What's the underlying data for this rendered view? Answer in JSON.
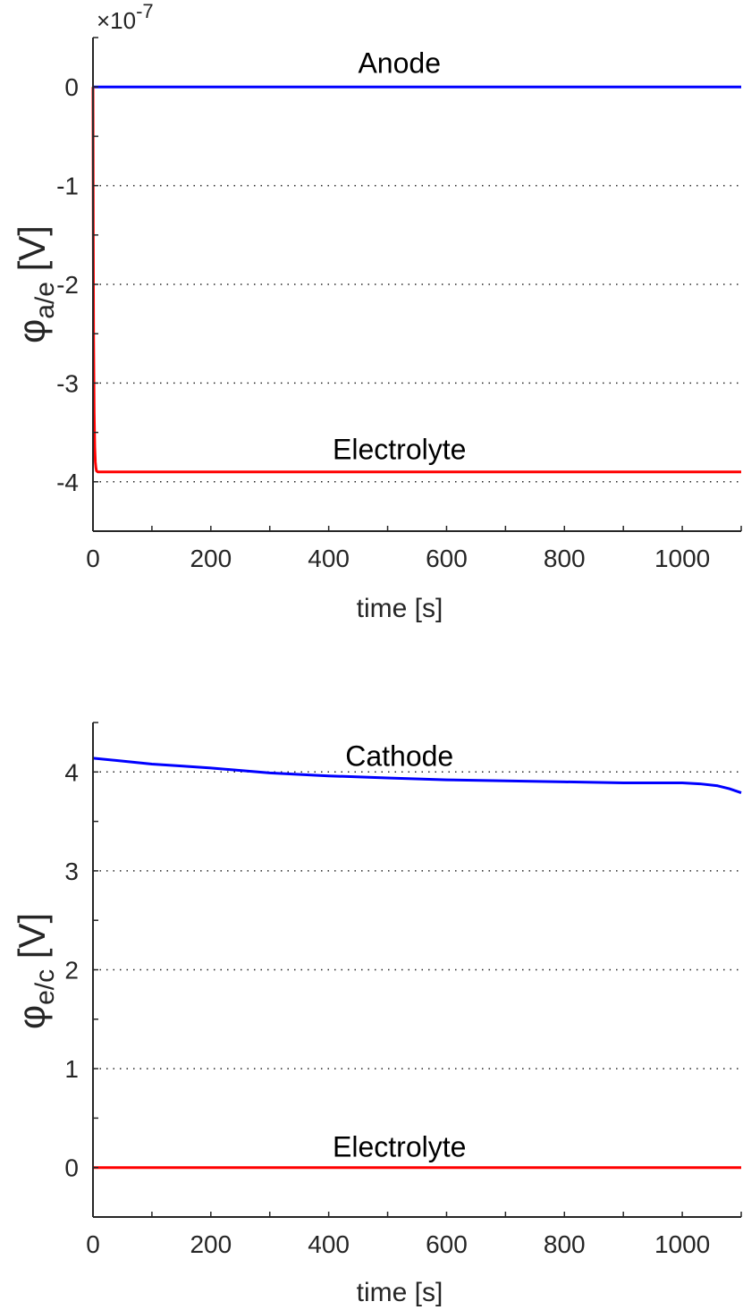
{
  "chart_data": [
    {
      "type": "line",
      "xlabel": "time [s]",
      "ylabel_main": "φ",
      "ylabel_sub": "a/e",
      "ylabel_unit": " [V]",
      "y_multiplier": "×10",
      "y_multiplier_exp": "-7",
      "xlim": [
        0,
        1100
      ],
      "ylim": [
        -4.5,
        0.5
      ],
      "x_ticks": [
        0,
        200,
        400,
        600,
        800,
        1000
      ],
      "x_tick_labels": [
        "0",
        "200",
        "400",
        "600",
        "800",
        "1000"
      ],
      "y_ticks": [
        0,
        -1,
        -2,
        -3,
        -4
      ],
      "y_tick_labels": [
        "0",
        "-1",
        "-2",
        "-3",
        "-4"
      ],
      "grid": "y-dotted",
      "series": [
        {
          "name": "Anode",
          "color": "#0000ff",
          "x": [
            0,
            1100
          ],
          "y": [
            0,
            0
          ]
        },
        {
          "name": "Electrolyte",
          "color": "#ff0000",
          "x": [
            0,
            0.5,
            1,
            2,
            3,
            4,
            5,
            6,
            8,
            10,
            1100
          ],
          "y": [
            0,
            -1.5,
            -2.5,
            -3.3,
            -3.65,
            -3.8,
            -3.86,
            -3.89,
            -3.9,
            -3.9,
            -3.9
          ]
        }
      ],
      "annotations": [
        {
          "text": "Anode",
          "x": 520,
          "y": 0.25
        },
        {
          "text": "Electrolyte",
          "x": 520,
          "y": -3.66
        }
      ]
    },
    {
      "type": "line",
      "xlabel": "time [s]",
      "ylabel_main": "φ",
      "ylabel_sub": "e/c",
      "ylabel_unit": " [V]",
      "xlim": [
        0,
        1100
      ],
      "ylim": [
        -0.5,
        4.5
      ],
      "x_ticks": [
        0,
        200,
        400,
        600,
        800,
        1000
      ],
      "x_tick_labels": [
        "0",
        "200",
        "400",
        "600",
        "800",
        "1000"
      ],
      "y_ticks": [
        0,
        1,
        2,
        3,
        4
      ],
      "y_tick_labels": [
        "0",
        "1",
        "2",
        "3",
        "4"
      ],
      "grid": "y-dotted",
      "series": [
        {
          "name": "Cathode",
          "color": "#0000ff",
          "x": [
            0,
            50,
            100,
            150,
            200,
            300,
            400,
            500,
            600,
            700,
            800,
            900,
            1000,
            1030,
            1060,
            1080,
            1100
          ],
          "y": [
            4.14,
            4.11,
            4.08,
            4.06,
            4.04,
            3.99,
            3.96,
            3.94,
            3.92,
            3.91,
            3.9,
            3.89,
            3.89,
            3.88,
            3.86,
            3.83,
            3.79
          ]
        },
        {
          "name": "Electrolyte",
          "color": "#ff0000",
          "x": [
            0,
            1100
          ],
          "y": [
            0,
            0
          ]
        }
      ],
      "annotations": [
        {
          "text": "Cathode",
          "x": 520,
          "y": 4.17
        },
        {
          "text": "Electrolyte",
          "x": 520,
          "y": 0.22
        }
      ]
    }
  ]
}
